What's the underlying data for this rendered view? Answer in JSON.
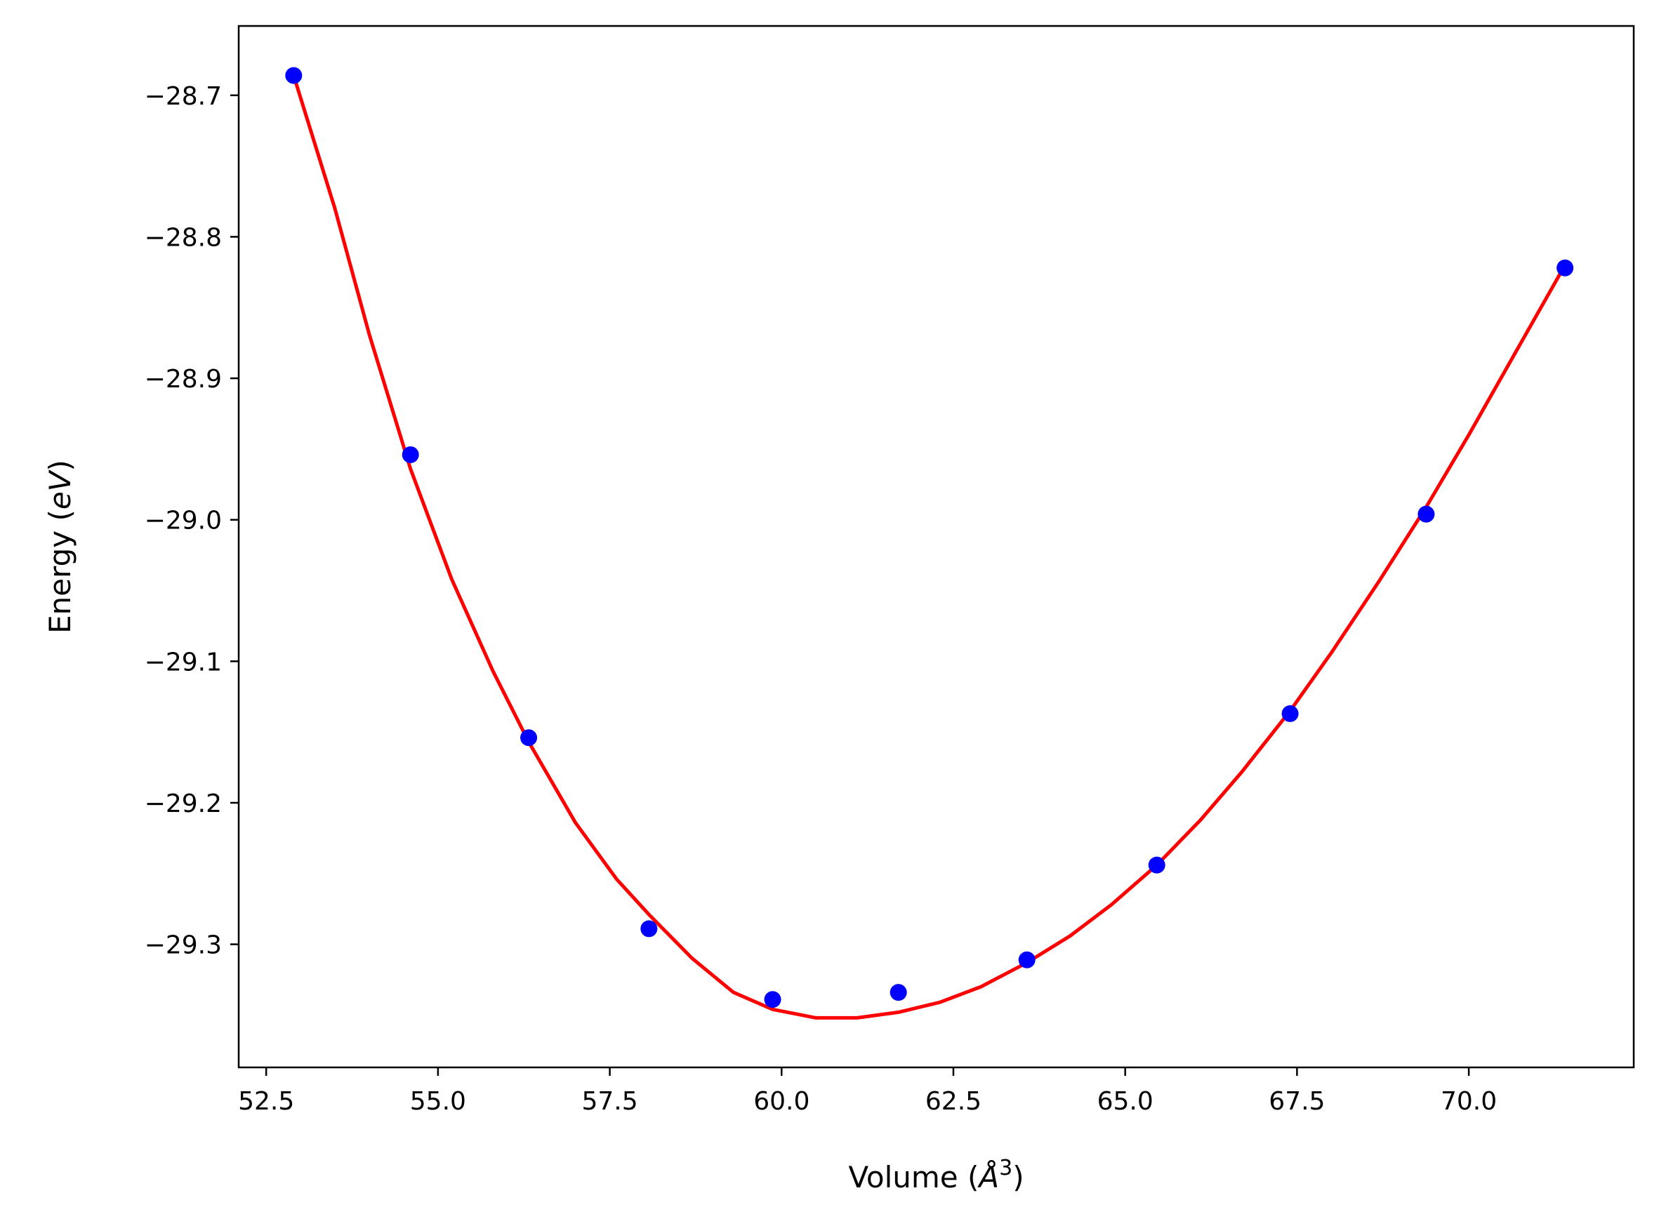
{
  "chart_data": {
    "type": "scatter",
    "title": "",
    "xlabel": "Volume ($\\AA^3$)",
    "xlabel_parts": {
      "prefix": "Volume (",
      "symbol": "Å",
      "sup": "3",
      "suffix": ")"
    },
    "ylabel": "Energy ($eV$)",
    "ylabel_parts": {
      "prefix": "Energy (",
      "italic": "eV",
      "suffix": ")"
    },
    "xlim": [
      52.1,
      72.4
    ],
    "ylim": [
      -29.387,
      -28.651
    ],
    "xticks": [
      52.5,
      55.0,
      57.5,
      60.0,
      62.5,
      65.0,
      67.5,
      70.0
    ],
    "xtick_labels": [
      "52.5",
      "55.0",
      "57.5",
      "60.0",
      "62.5",
      "65.0",
      "67.5",
      "70.0"
    ],
    "yticks": [
      -28.7,
      -28.8,
      -28.9,
      -29.0,
      -29.1,
      -29.2,
      -29.3
    ],
    "ytick_labels": [
      "−28.7",
      "−28.8",
      "−28.9",
      "−29.0",
      "−29.1",
      "−29.2",
      "−29.3"
    ],
    "grid": false,
    "series": [
      {
        "kind": "points",
        "color": "#0000ff",
        "x": [
          52.9,
          54.6,
          56.32,
          58.07,
          59.87,
          61.7,
          63.57,
          65.46,
          67.4,
          69.38,
          71.4
        ],
        "y": [
          -28.686,
          -28.954,
          -29.154,
          -29.289,
          -29.339,
          -29.334,
          -29.311,
          -29.244,
          -29.137,
          -28.996,
          -28.822
        ]
      },
      {
        "kind": "fit-curve",
        "color": "#ff0000",
        "x": [
          52.9,
          53.5,
          54.0,
          54.6,
          55.2,
          55.8,
          56.32,
          57.0,
          57.6,
          58.07,
          58.7,
          59.3,
          59.87,
          60.5,
          61.1,
          61.7,
          62.3,
          62.9,
          63.57,
          64.2,
          64.8,
          65.46,
          66.1,
          66.7,
          67.4,
          68.0,
          68.7,
          69.38,
          70.0,
          70.7,
          71.4
        ],
        "y": [
          -28.686,
          -28.78,
          -28.869,
          -28.964,
          -29.042,
          -29.107,
          -29.157,
          -29.214,
          -29.254,
          -29.279,
          -29.31,
          -29.334,
          -29.346,
          -29.352,
          -29.352,
          -29.348,
          -29.341,
          -29.33,
          -29.313,
          -29.294,
          -29.272,
          -29.244,
          -29.212,
          -29.178,
          -29.135,
          -29.094,
          -29.043,
          -28.991,
          -28.94,
          -28.88,
          -28.82
        ]
      }
    ]
  }
}
